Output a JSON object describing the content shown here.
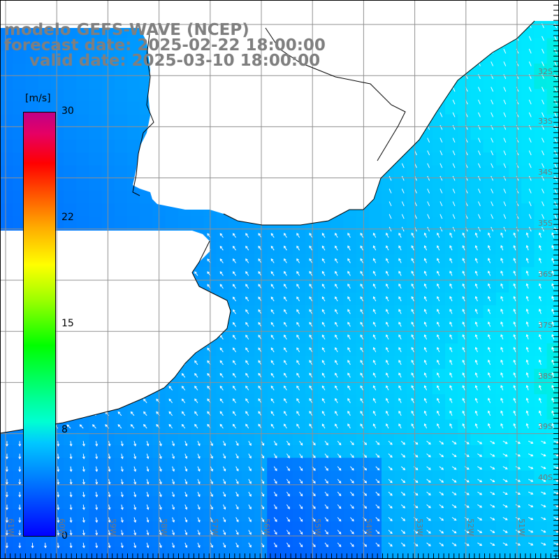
{
  "title": {
    "line1": "modelo GEFS-WAVE (NCEP)",
    "line2": "forecast date: 2025-02-22 18:00:00",
    "line3": "valid date: 2025-03-10 18:00:00"
  },
  "colorbar": {
    "unit": "[m/s]",
    "ticks": [
      "30",
      "22",
      "15",
      "8",
      "0"
    ],
    "range": [
      0,
      30
    ],
    "colors": [
      "#0000ff",
      "#0070ff",
      "#00c8ff",
      "#00ffd2",
      "#00ff00",
      "#ffff00",
      "#ff5000",
      "#ff0000",
      "#c00087"
    ]
  },
  "map": {
    "land_color": "#ffffff",
    "coast_color": "#000000",
    "grid_color": "#909090",
    "lat_labels": [
      "32S",
      "33S",
      "34S",
      "35S",
      "36S",
      "37S",
      "38S",
      "39S",
      "40S"
    ],
    "lon_labels": [
      "61W",
      "60W",
      "59W",
      "58W",
      "57W",
      "56W",
      "55W",
      "54W",
      "53W",
      "52W",
      "51W"
    ],
    "wind_note": "wind vectors white"
  }
}
